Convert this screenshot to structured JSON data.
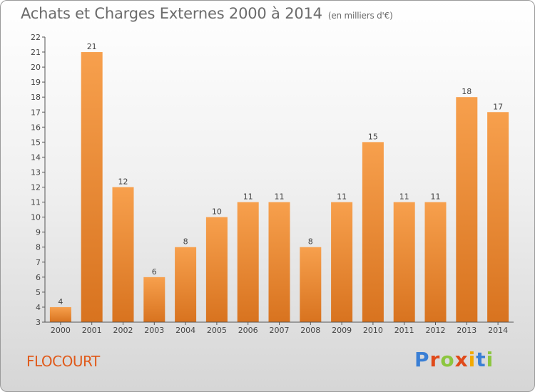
{
  "header": {
    "title": "Achats et Charges Externes 2000 à 2014",
    "unit": "(en milliers d'€)"
  },
  "footer": {
    "town": "FLOCOURT",
    "logo_text": "Proxiti",
    "logo_colors": [
      "#3a7fd5",
      "#e04a1a",
      "#8cc63f",
      "#e04a1a",
      "#f2a900",
      "#3a7fd5",
      "#8cc63f"
    ]
  },
  "chart_data": {
    "type": "bar",
    "categories": [
      "2000",
      "2001",
      "2002",
      "2003",
      "2004",
      "2005",
      "2006",
      "2007",
      "2008",
      "2009",
      "2010",
      "2011",
      "2012",
      "2013",
      "2014"
    ],
    "values": [
      4,
      21,
      12,
      6,
      8,
      10,
      11,
      11,
      8,
      11,
      15,
      11,
      11,
      18,
      17
    ],
    "title": "Achats et Charges Externes 2000 à 2014",
    "ylim": [
      3,
      22
    ],
    "yticks": [
      3,
      4,
      5,
      6,
      7,
      8,
      9,
      10,
      11,
      12,
      13,
      14,
      15,
      16,
      17,
      18,
      19,
      20,
      21,
      22
    ],
    "grid": false,
    "bar_color_top": "#f7a04d",
    "bar_color_bottom": "#d8731f"
  }
}
